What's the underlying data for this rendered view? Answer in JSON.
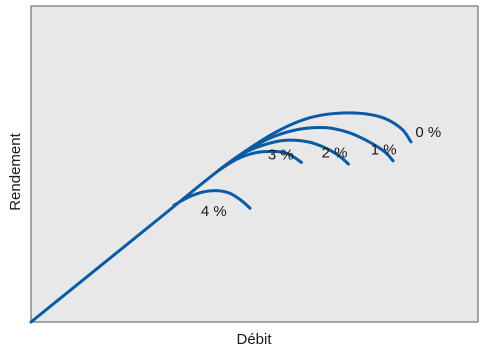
{
  "chart_data": {
    "type": "line",
    "title": "",
    "xlabel": "Débit",
    "ylabel": "Rendement",
    "xlim": [
      0,
      100
    ],
    "ylim": [
      0,
      100
    ],
    "grid": false,
    "legend": "none",
    "tick_labels": false,
    "background_color": "#e8e8e8",
    "line_color": "#0a5aa6",
    "series": [
      {
        "name": "0 %",
        "x": [
          0,
          14,
          28,
          42,
          50,
          56,
          62,
          68,
          74,
          79,
          83,
          85
        ],
        "y": [
          0,
          16,
          32,
          48,
          56,
          61,
          64.5,
          66,
          66,
          64.5,
          61,
          57
        ]
      },
      {
        "name": "1 %",
        "x": [
          42,
          48,
          54,
          60,
          66,
          71,
          75,
          79,
          81
        ],
        "y": [
          48,
          54,
          58.5,
          61,
          61.5,
          60,
          57.5,
          54,
          51
        ]
      },
      {
        "name": "2 %",
        "x": [
          42,
          47,
          52,
          57,
          62,
          66,
          69,
          71
        ],
        "y": [
          48,
          53,
          56,
          57.5,
          57,
          55,
          52.5,
          50
        ]
      },
      {
        "name": "3 %",
        "x": [
          42,
          46,
          50,
          54,
          57,
          59,
          60.5
        ],
        "y": [
          48,
          51.5,
          53.5,
          54,
          53.5,
          52,
          50.5
        ]
      },
      {
        "name": "4 %",
        "x": [
          32,
          36,
          40,
          44,
          47,
          49
        ],
        "y": [
          37,
          40,
          41.5,
          41,
          38.5,
          36
        ]
      }
    ],
    "annotations": [
      {
        "text": "0 %",
        "x": 86,
        "y": 58.5
      },
      {
        "text": "1 %",
        "x": 76,
        "y": 53
      },
      {
        "text": "2 %",
        "x": 65,
        "y": 52
      },
      {
        "text": "3 %",
        "x": 53,
        "y": 51.5
      },
      {
        "text": "4 %",
        "x": 38,
        "y": 33.5
      }
    ]
  }
}
